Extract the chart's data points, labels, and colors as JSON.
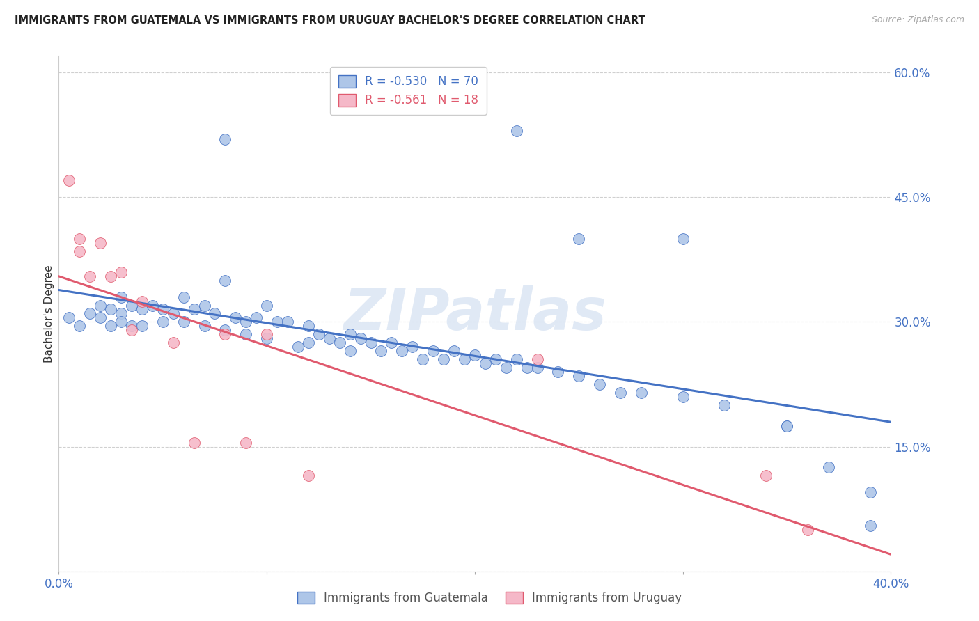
{
  "title": "IMMIGRANTS FROM GUATEMALA VS IMMIGRANTS FROM URUGUAY BACHELOR'S DEGREE CORRELATION CHART",
  "source": "Source: ZipAtlas.com",
  "ylabel": "Bachelor's Degree",
  "xlim": [
    0.0,
    0.4
  ],
  "ylim": [
    0.0,
    0.62
  ],
  "yticks": [
    0.0,
    0.15,
    0.3,
    0.45,
    0.6
  ],
  "ytick_labels": [
    "",
    "15.0%",
    "30.0%",
    "45.0%",
    "60.0%"
  ],
  "xticks": [
    0.0,
    0.1,
    0.2,
    0.3,
    0.4
  ],
  "xtick_labels": [
    "0.0%",
    "",
    "",
    "",
    "40.0%"
  ],
  "background_color": "#ffffff",
  "grid_color": "#d0d0d0",
  "watermark_text": "ZIPatlas",
  "guatemala_color": "#aec6e8",
  "uruguay_color": "#f5b8c8",
  "line_guatemala_color": "#4472c4",
  "line_uruguay_color": "#e05a6e",
  "guatemala_R": -0.53,
  "guatemala_N": 70,
  "uruguay_R": -0.561,
  "uruguay_N": 18,
  "guatemala_x": [
    0.005,
    0.01,
    0.015,
    0.02,
    0.02,
    0.025,
    0.025,
    0.03,
    0.03,
    0.03,
    0.035,
    0.035,
    0.04,
    0.04,
    0.045,
    0.05,
    0.05,
    0.055,
    0.06,
    0.06,
    0.065,
    0.07,
    0.07,
    0.075,
    0.08,
    0.08,
    0.085,
    0.09,
    0.09,
    0.095,
    0.1,
    0.1,
    0.105,
    0.11,
    0.115,
    0.12,
    0.12,
    0.125,
    0.13,
    0.135,
    0.14,
    0.14,
    0.145,
    0.15,
    0.155,
    0.16,
    0.165,
    0.17,
    0.175,
    0.18,
    0.185,
    0.19,
    0.195,
    0.2,
    0.205,
    0.21,
    0.215,
    0.22,
    0.225,
    0.23,
    0.24,
    0.25,
    0.26,
    0.27,
    0.28,
    0.3,
    0.32,
    0.35,
    0.37,
    0.39
  ],
  "guatemala_y": [
    0.305,
    0.295,
    0.31,
    0.32,
    0.305,
    0.315,
    0.295,
    0.33,
    0.31,
    0.3,
    0.32,
    0.295,
    0.315,
    0.295,
    0.32,
    0.315,
    0.3,
    0.31,
    0.33,
    0.3,
    0.315,
    0.32,
    0.295,
    0.31,
    0.35,
    0.29,
    0.305,
    0.3,
    0.285,
    0.305,
    0.32,
    0.28,
    0.3,
    0.3,
    0.27,
    0.295,
    0.275,
    0.285,
    0.28,
    0.275,
    0.285,
    0.265,
    0.28,
    0.275,
    0.265,
    0.275,
    0.265,
    0.27,
    0.255,
    0.265,
    0.255,
    0.265,
    0.255,
    0.26,
    0.25,
    0.255,
    0.245,
    0.255,
    0.245,
    0.245,
    0.24,
    0.235,
    0.225,
    0.215,
    0.215,
    0.21,
    0.2,
    0.175,
    0.125,
    0.095
  ],
  "guatemala_x_outliers": [
    0.22,
    0.3,
    0.25,
    0.08,
    0.35,
    0.39
  ],
  "guatemala_y_outliers": [
    0.53,
    0.4,
    0.4,
    0.52,
    0.175,
    0.055
  ],
  "uruguay_x": [
    0.005,
    0.01,
    0.01,
    0.015,
    0.02,
    0.025,
    0.03,
    0.035,
    0.04,
    0.055,
    0.065,
    0.08,
    0.09,
    0.1,
    0.12,
    0.23,
    0.34,
    0.36
  ],
  "uruguay_y": [
    0.47,
    0.4,
    0.385,
    0.355,
    0.395,
    0.355,
    0.36,
    0.29,
    0.325,
    0.275,
    0.155,
    0.285,
    0.155,
    0.285,
    0.115,
    0.255,
    0.115,
    0.05
  ],
  "legend_label_guatemala": "Immigrants from Guatemala",
  "legend_label_uruguay": "Immigrants from Uruguay"
}
